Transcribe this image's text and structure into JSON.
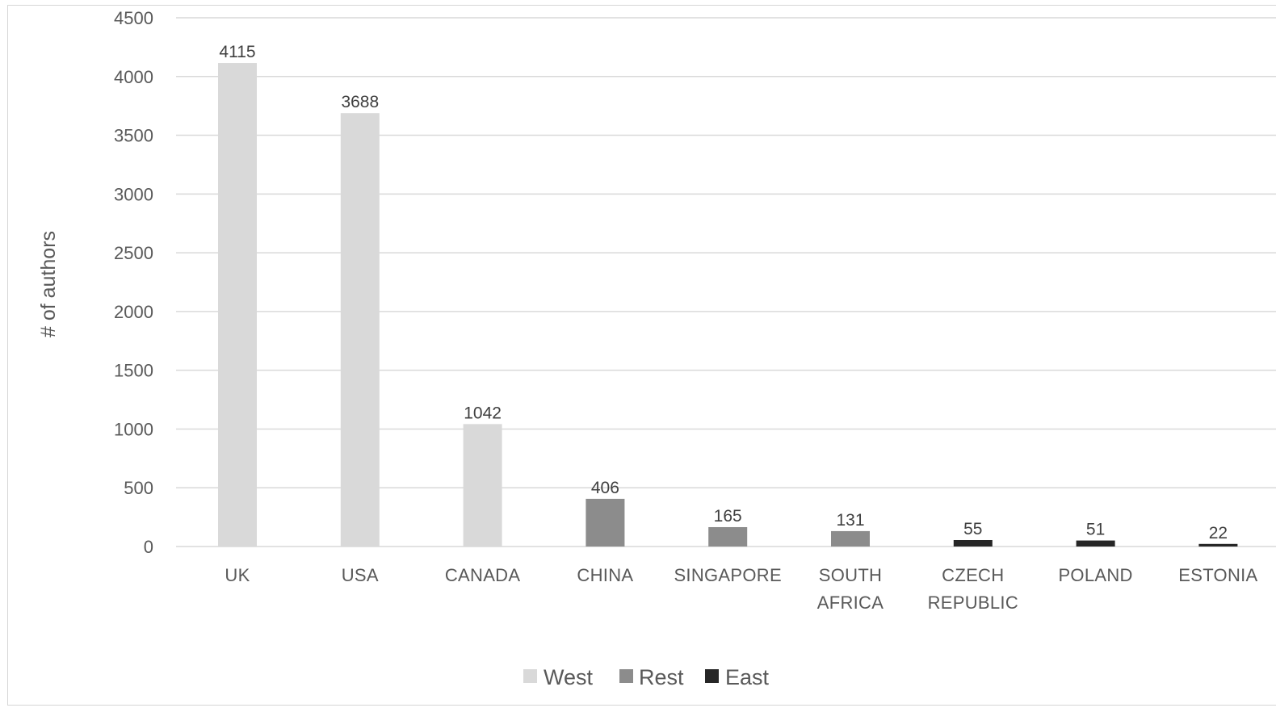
{
  "chart_data": {
    "type": "bar",
    "ylabel": "# of authors",
    "xlabel": "",
    "title": "",
    "ylim": [
      0,
      4500
    ],
    "yticks": [
      0,
      500,
      1000,
      1500,
      2000,
      2500,
      3000,
      3500,
      4000,
      4500
    ],
    "grid": true,
    "legend_position": "bottom",
    "categories": [
      [
        "UK"
      ],
      [
        "USA"
      ],
      [
        "CANADA"
      ],
      [
        "CHINA"
      ],
      [
        "SINGAPORE"
      ],
      [
        "SOUTH",
        "AFRICA"
      ],
      [
        "CZECH",
        "REPUBLIC"
      ],
      [
        "POLAND"
      ],
      [
        "ESTONIA"
      ]
    ],
    "values": [
      4115,
      3688,
      1042,
      406,
      165,
      131,
      55,
      51,
      22
    ],
    "groups": [
      "West",
      "West",
      "West",
      "Rest",
      "Rest",
      "Rest",
      "East",
      "East",
      "East"
    ],
    "legend": [
      {
        "name": "West",
        "color": "#d9d9d9"
      },
      {
        "name": "Rest",
        "color": "#8c8c8c"
      },
      {
        "name": "East",
        "color": "#262626"
      }
    ]
  }
}
